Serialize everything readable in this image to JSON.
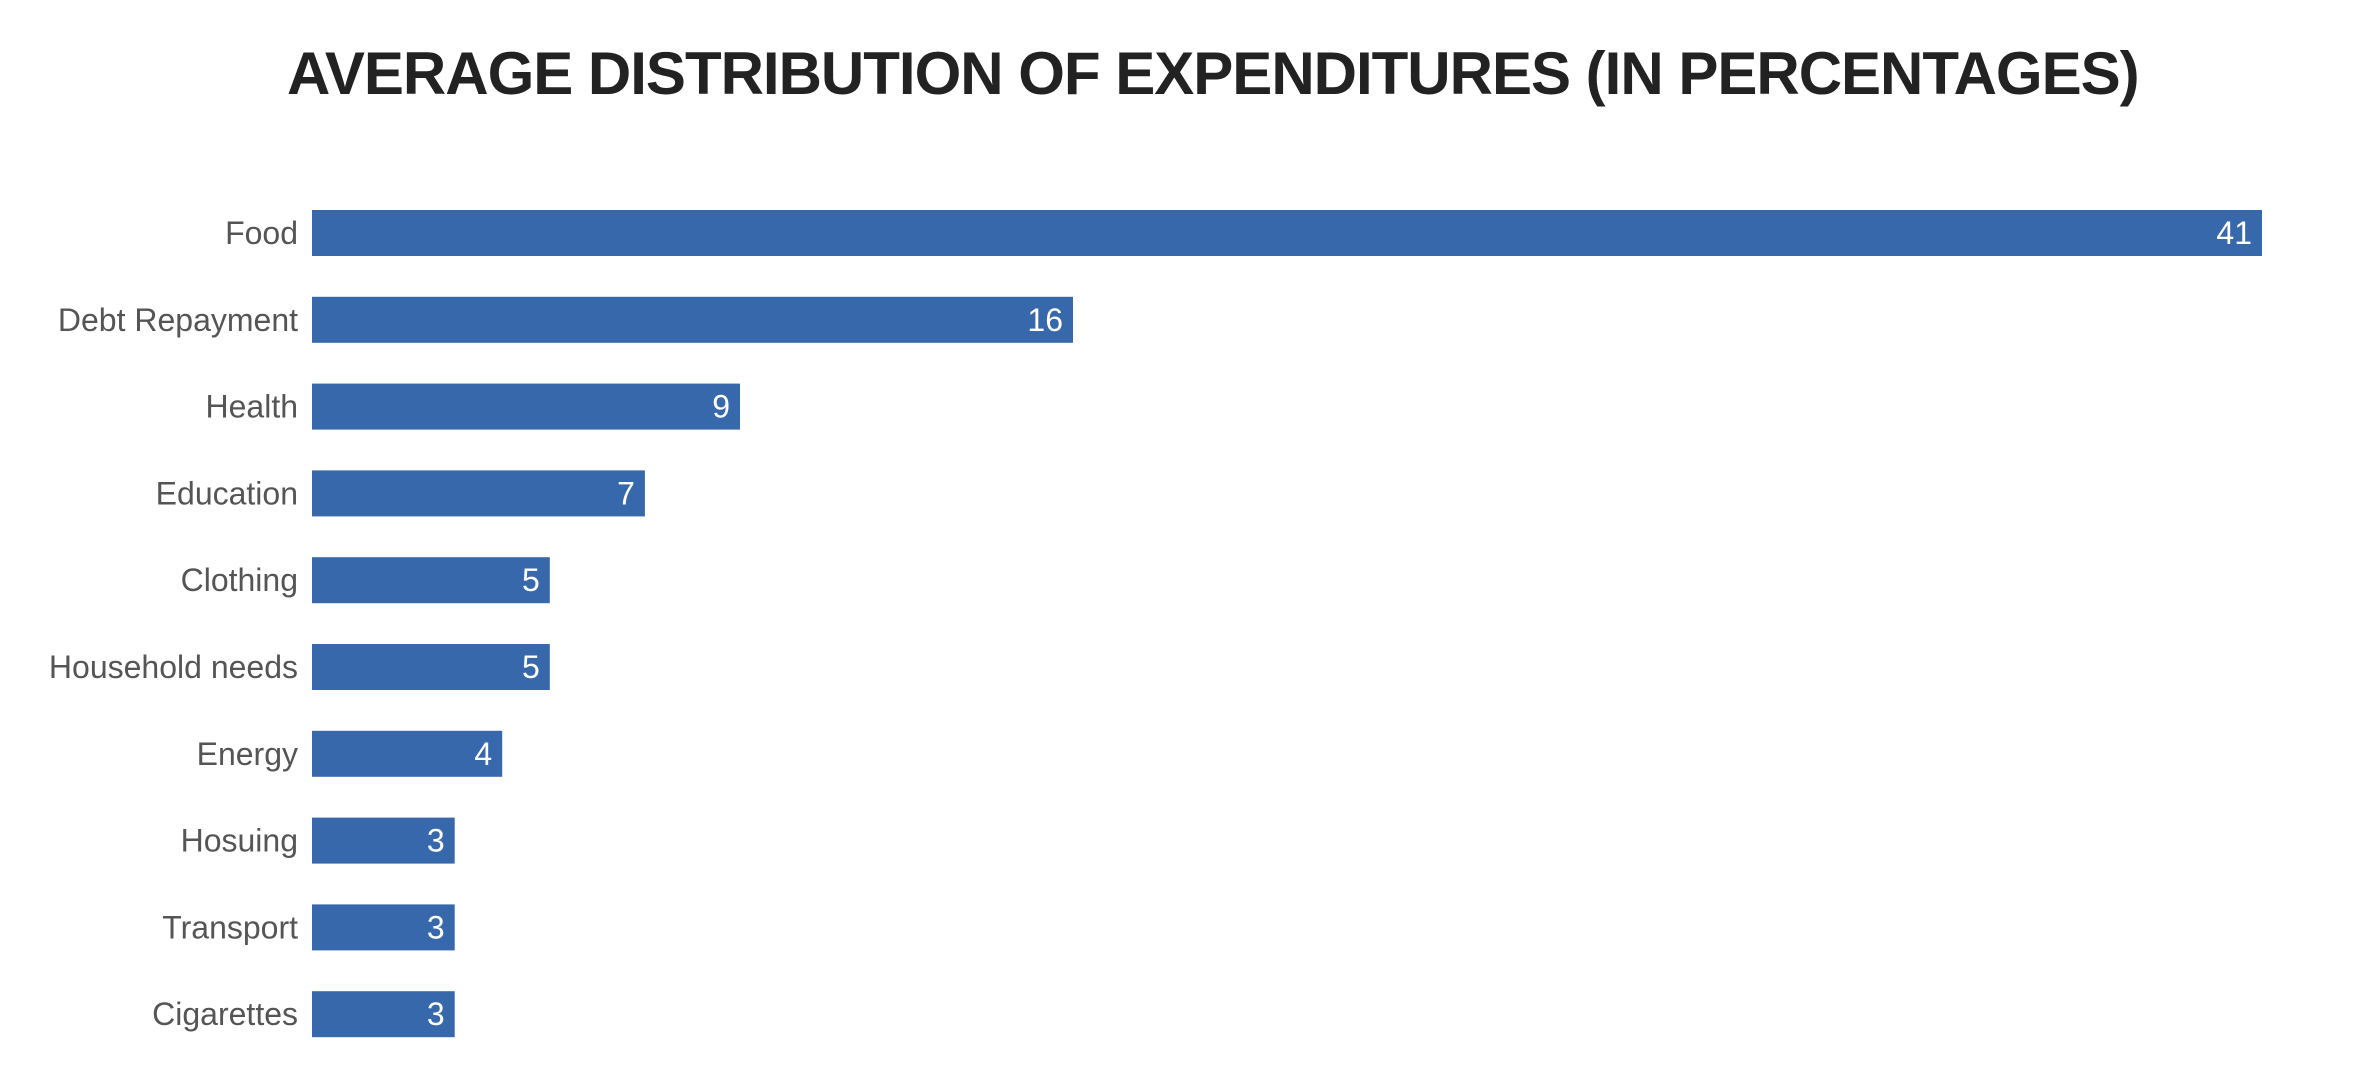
{
  "chart_data": {
    "type": "bar",
    "orientation": "horizontal",
    "title": "AVERAGE DISTRIBUTION OF EXPENDITURES (IN PERCENTAGES)",
    "xlabel": "",
    "ylabel": "",
    "categories": [
      "Food",
      "Debt Repayment",
      "Health",
      "Education",
      "Clothing",
      "Household needs",
      "Energy",
      "Hosuing",
      "Transport",
      "Cigarettes"
    ],
    "values": [
      41,
      16,
      9,
      7,
      5,
      5,
      4,
      3,
      3,
      3
    ],
    "xlim": [
      0,
      41
    ],
    "grid": false,
    "legend": "none",
    "data_labels": "inside-end",
    "colors": {
      "bar": "#3768ab",
      "value_label": "#ffffff",
      "category_label": "#555555",
      "title": "#222222"
    }
  }
}
